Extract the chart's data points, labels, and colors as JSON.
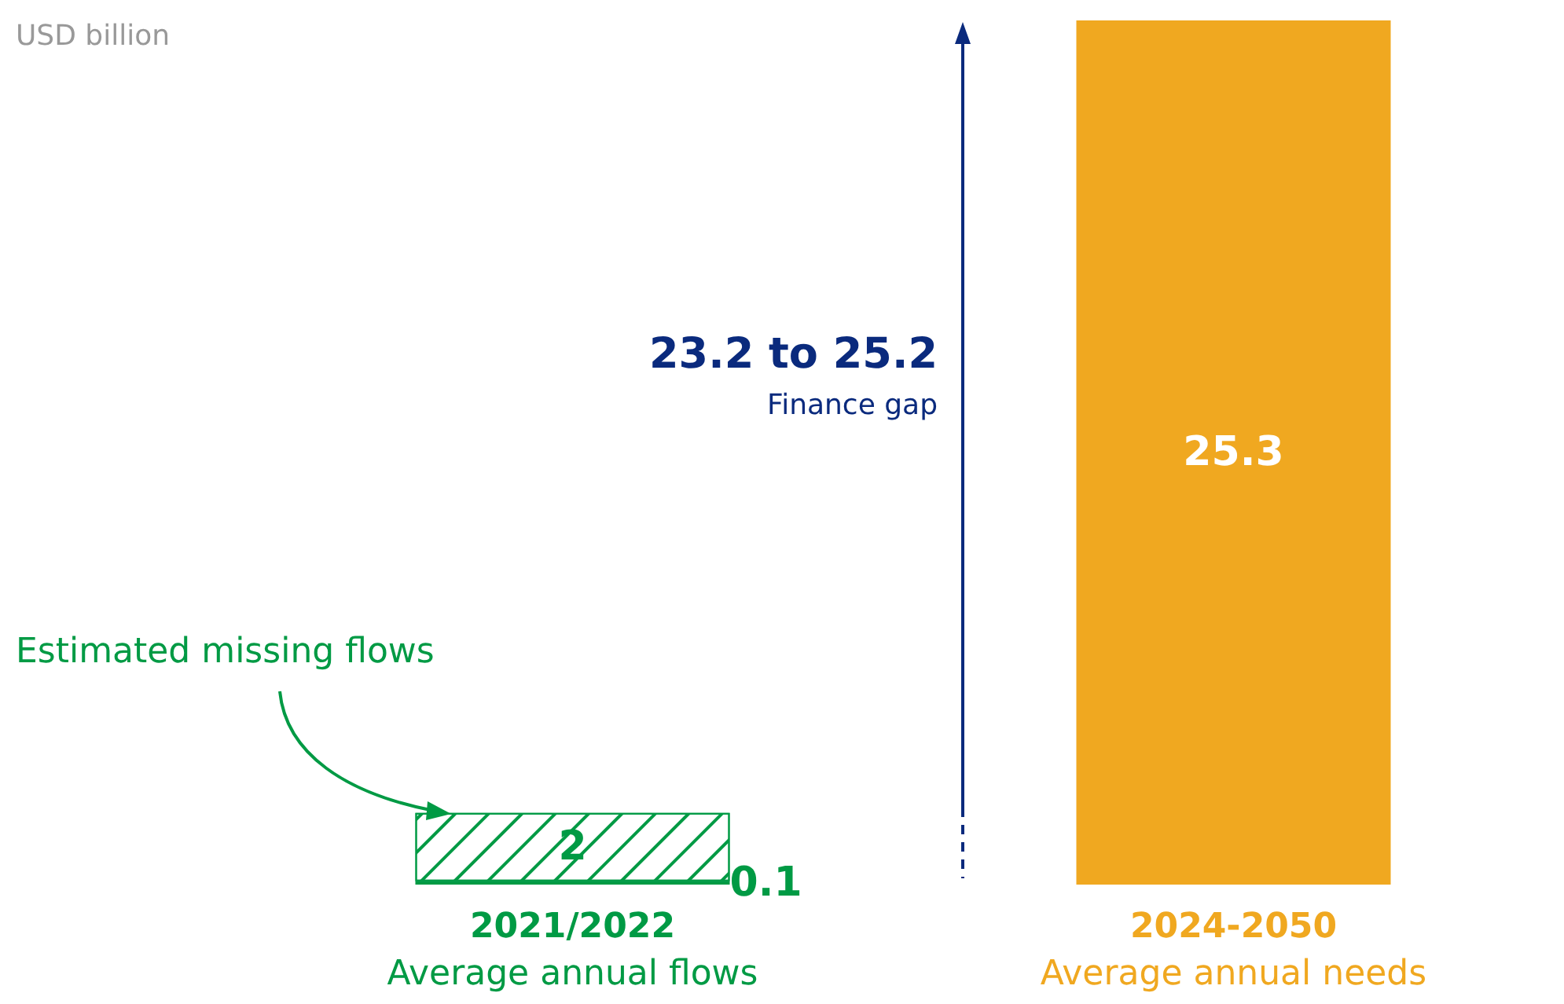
{
  "chart_data": {
    "type": "bar",
    "ylabel": "USD billion",
    "categories": [
      "2021/2022\nAverage annual flows",
      "2024-2050\nAverage annual needs"
    ],
    "stacked": true,
    "series": [
      {
        "colors": [
          "#009a44",
          "#f0a820"
        ],
        "values": [
          0.1,
          25.3
        ]
      },
      {
        "name": "Estimated missing flows",
        "color": "#009a44",
        "values": [
          2,
          null
        ]
      }
    ],
    "annotations": [
      "23.2 to 25.2",
      "Finance gap"
    ],
    "data_labels": true,
    "legend": false,
    "grid": false
  }
}
